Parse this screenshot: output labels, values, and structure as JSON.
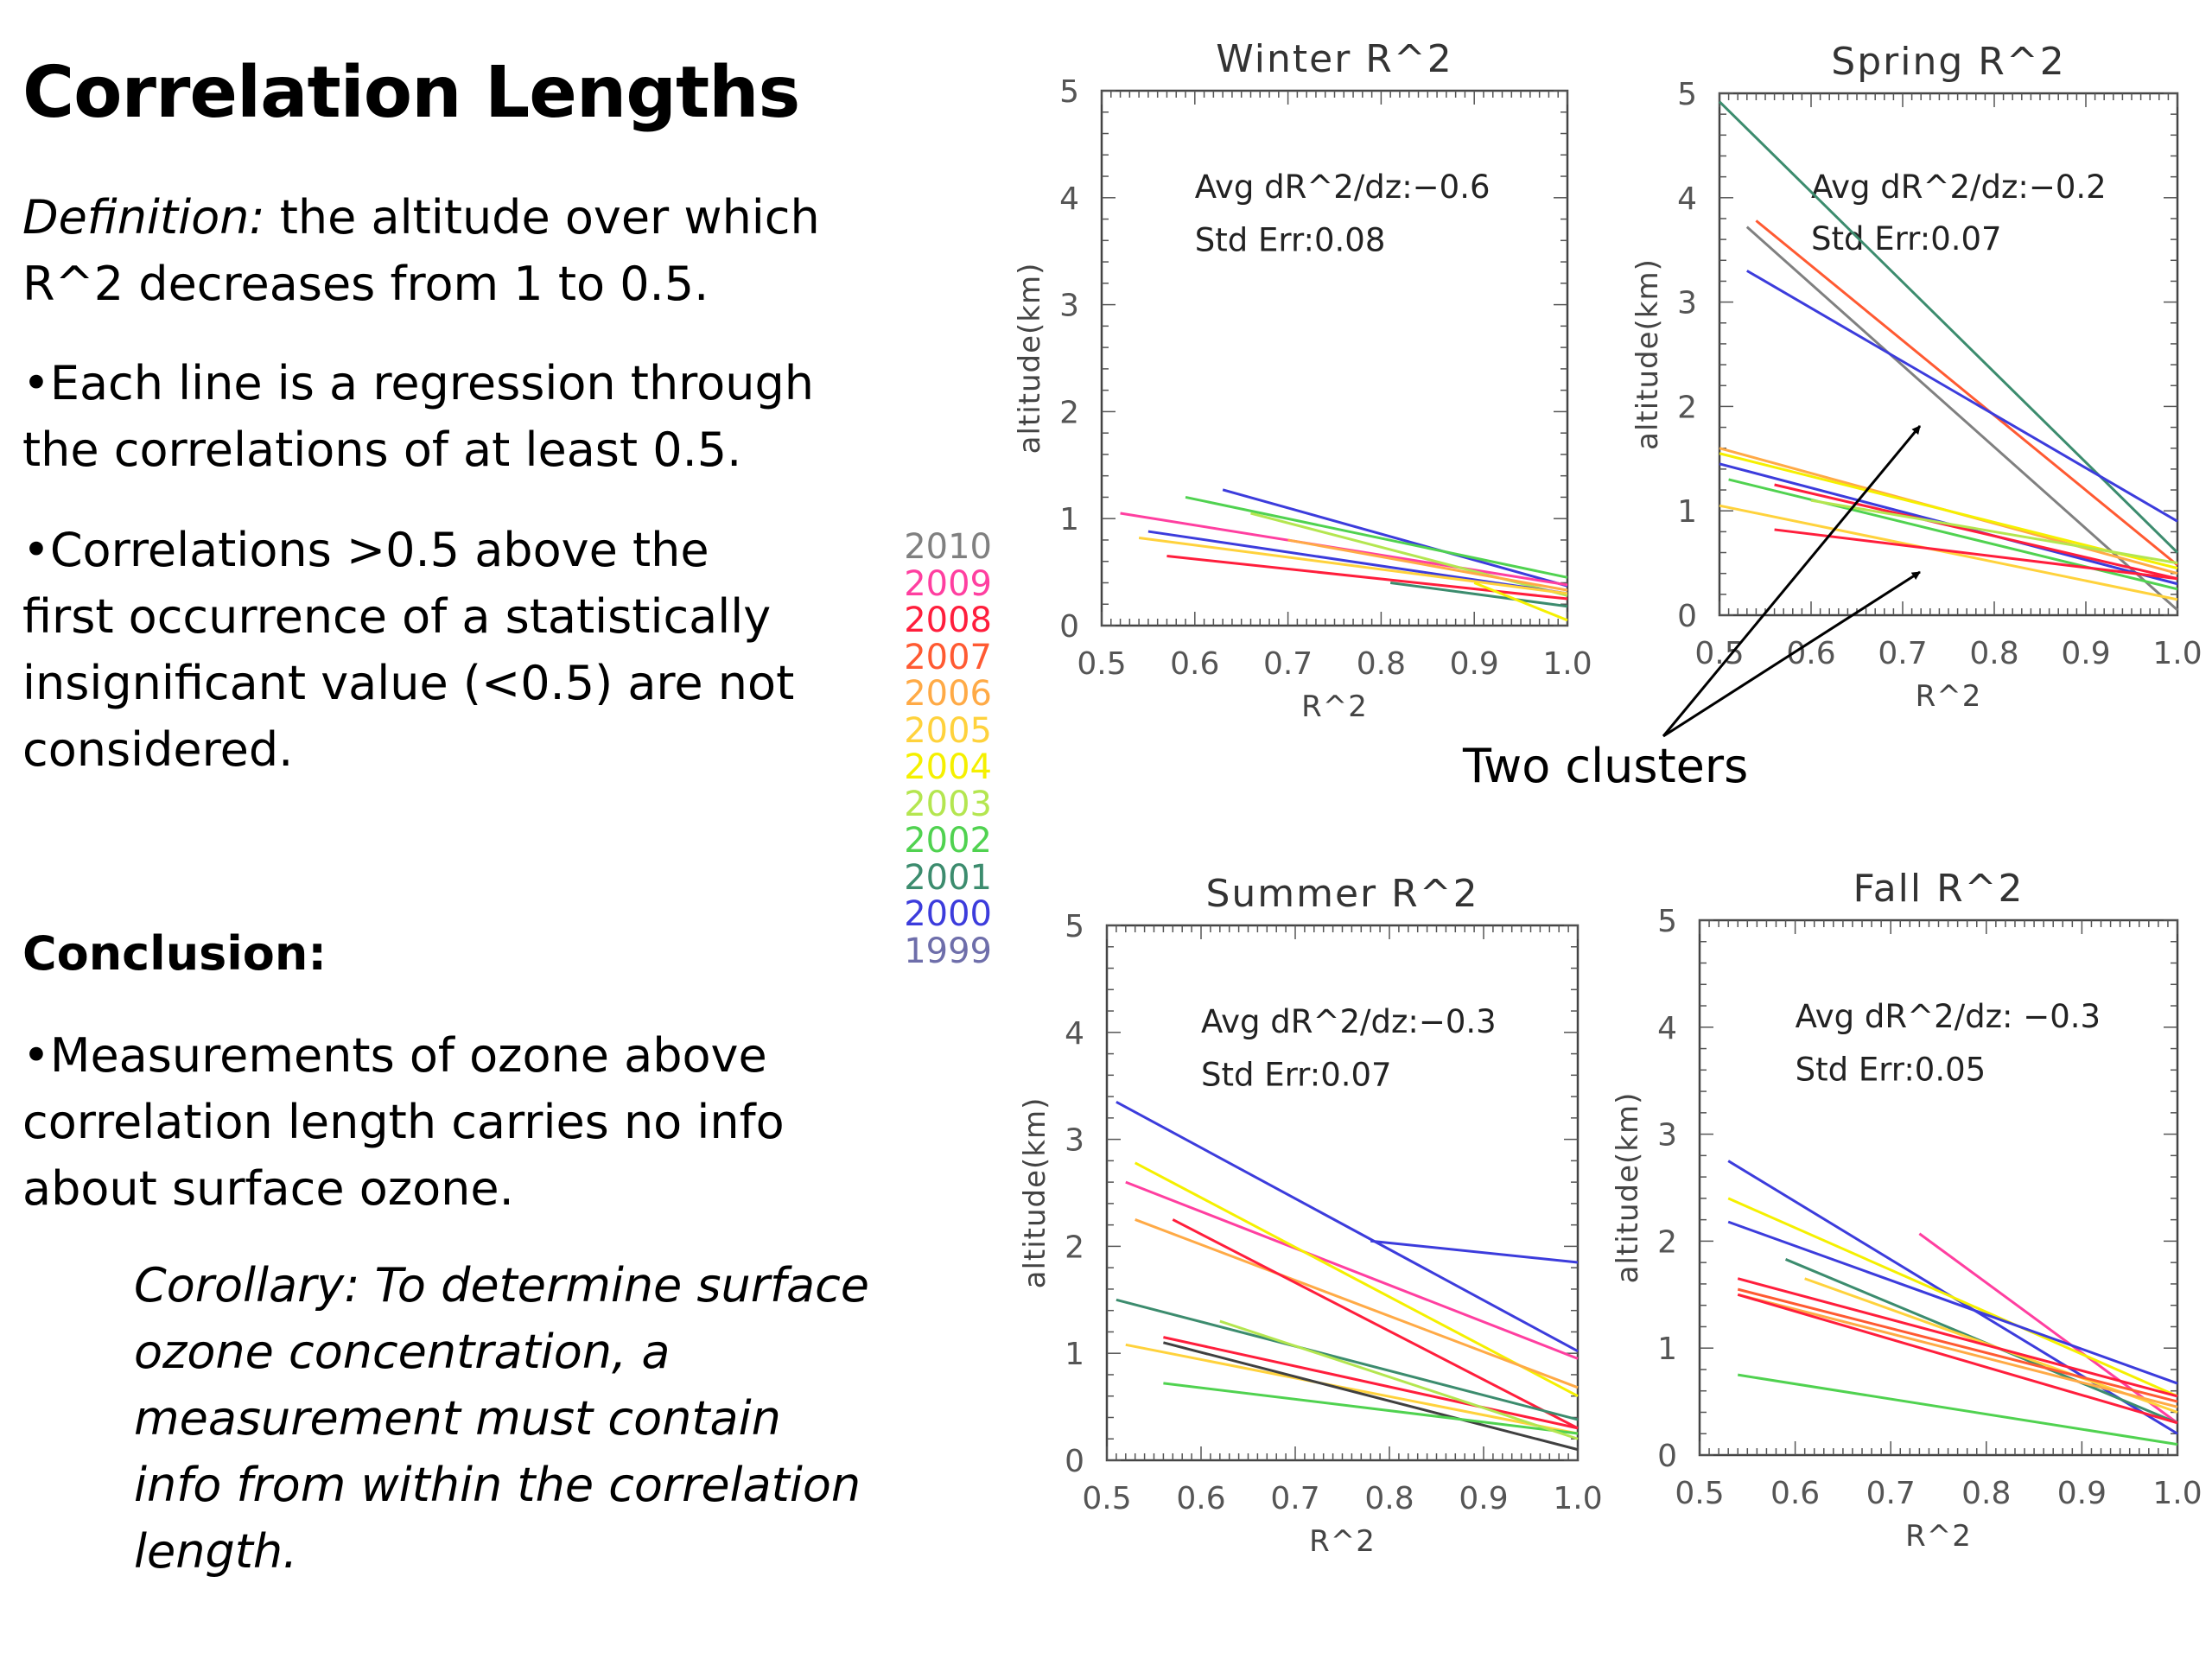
{
  "slide": {
    "title": "Correlation Lengths",
    "definition_label": "Definition:",
    "definition_text": " the altitude over which R^2 decreases from 1 to 0.5.",
    "bullet1": "•Each line is a regression through the correlations of at least 0.5.",
    "bullet2": "•Correlations >0.5 above the first occurrence of a statistically insignificant value (<0.5) are not considered.",
    "conclusion_heading": "Conclusion:",
    "bullet3": "•Measurements of ozone above correlation length carries no info about surface ozone.",
    "corollary": "Corollary:  To determine surface ozone concentration, a measurement must contain info from within the correlation length.",
    "annotation": "Two clusters"
  },
  "legend": [
    {
      "year": "2010",
      "color": "#808080"
    },
    {
      "year": "2009",
      "color": "#ff3fa0"
    },
    {
      "year": "2008",
      "color": "#ff1e3c"
    },
    {
      "year": "2007",
      "color": "#ff5a32"
    },
    {
      "year": "2006",
      "color": "#ffaa46"
    },
    {
      "year": "2005",
      "color": "#ffd23c"
    },
    {
      "year": "2004",
      "color": "#f5f000"
    },
    {
      "year": "2003",
      "color": "#b4e650"
    },
    {
      "year": "2002",
      "color": "#50d250"
    },
    {
      "year": "2001",
      "color": "#3c8c6e"
    },
    {
      "year": "2000",
      "color": "#3c3cdc"
    },
    {
      "year": "1999",
      "color": "#6e6eaa"
    }
  ],
  "chart_data": [
    {
      "type": "line",
      "title": "Winter R^2",
      "xlabel": "R^2",
      "ylabel": "altitude(km)",
      "xlim": [
        0.5,
        1.0
      ],
      "ylim": [
        0,
        5
      ],
      "x_ticks": [
        "0.5",
        "0.6",
        "0.7",
        "0.8",
        "0.9",
        "1.0"
      ],
      "y_ticks": [
        "0",
        "1",
        "2",
        "3",
        "4",
        "5"
      ],
      "stat_avg": "Avg dR^2/dz:−0.6",
      "stat_err": "Std Err:0.08",
      "series": [
        {
          "color": "#3c3cdc",
          "x": [
            0.63,
            1.0
          ],
          "y": [
            1.27,
            0.37
          ]
        },
        {
          "color": "#50d250",
          "x": [
            0.59,
            1.0
          ],
          "y": [
            1.2,
            0.45
          ]
        },
        {
          "color": "#ff3fa0",
          "x": [
            0.52,
            1.0
          ],
          "y": [
            1.05,
            0.38
          ]
        },
        {
          "color": "#b4e650",
          "x": [
            0.66,
            1.0
          ],
          "y": [
            1.05,
            0.28
          ]
        },
        {
          "color": "#3c3cdc",
          "x": [
            0.55,
            1.0
          ],
          "y": [
            0.88,
            0.3
          ]
        },
        {
          "color": "#ffd23c",
          "x": [
            0.54,
            1.0
          ],
          "y": [
            0.82,
            0.3
          ]
        },
        {
          "color": "#ff1e3c",
          "x": [
            0.57,
            1.0
          ],
          "y": [
            0.65,
            0.25
          ]
        },
        {
          "color": "#ffaa46",
          "x": [
            0.7,
            1.0
          ],
          "y": [
            0.8,
            0.33
          ]
        },
        {
          "color": "#3c8c6e",
          "x": [
            0.81,
            1.0
          ],
          "y": [
            0.4,
            0.18
          ]
        },
        {
          "color": "#f5f000",
          "x": [
            0.9,
            1.0
          ],
          "y": [
            0.4,
            0.05
          ]
        }
      ]
    },
    {
      "type": "line",
      "title": "Spring R^2",
      "xlabel": "R^2",
      "ylabel": "altitude(km)",
      "xlim": [
        0.5,
        1.0
      ],
      "ylim": [
        0,
        5
      ],
      "x_ticks": [
        "0.5",
        "0.6",
        "0.7",
        "0.8",
        "0.9",
        "1.0"
      ],
      "y_ticks": [
        "0",
        "1",
        "2",
        "3",
        "4",
        "5"
      ],
      "stat_avg": "Avg dR^2/dz:−0.2",
      "stat_err": "Std Err:0.07",
      "series": [
        {
          "color": "#3c8c6e",
          "x": [
            0.5,
            1.0
          ],
          "y": [
            4.92,
            0.6
          ]
        },
        {
          "color": "#ff5a32",
          "x": [
            0.54,
            1.0
          ],
          "y": [
            3.78,
            0.48
          ]
        },
        {
          "color": "#808080",
          "x": [
            0.53,
            1.0
          ],
          "y": [
            3.72,
            0.05
          ]
        },
        {
          "color": "#3c3cdc",
          "x": [
            0.53,
            1.0
          ],
          "y": [
            3.3,
            0.9
          ]
        },
        {
          "color": "#ffaa46",
          "x": [
            0.5,
            1.0
          ],
          "y": [
            1.6,
            0.4
          ]
        },
        {
          "color": "#f5f000",
          "x": [
            0.5,
            1.0
          ],
          "y": [
            1.55,
            0.45
          ]
        },
        {
          "color": "#3c3cdc",
          "x": [
            0.5,
            1.0
          ],
          "y": [
            1.45,
            0.3
          ]
        },
        {
          "color": "#50d250",
          "x": [
            0.51,
            1.0
          ],
          "y": [
            1.3,
            0.25
          ]
        },
        {
          "color": "#ff1e3c",
          "x": [
            0.56,
            1.0
          ],
          "y": [
            1.25,
            0.35
          ]
        },
        {
          "color": "#ffd23c",
          "x": [
            0.5,
            1.0
          ],
          "y": [
            1.05,
            0.15
          ]
        },
        {
          "color": "#ff1e3c",
          "x": [
            0.56,
            1.0
          ],
          "y": [
            0.82,
            0.35
          ]
        },
        {
          "color": "#b4e650",
          "x": [
            0.6,
            1.0
          ],
          "y": [
            1.1,
            0.5
          ]
        }
      ]
    },
    {
      "type": "line",
      "title": "Summer R^2",
      "xlabel": "R^2",
      "ylabel": "altitude(km)",
      "xlim": [
        0.5,
        1.0
      ],
      "ylim": [
        0,
        5
      ],
      "x_ticks": [
        "0.5",
        "0.6",
        "0.7",
        "0.8",
        "0.9",
        "1.0"
      ],
      "y_ticks": [
        "0",
        "1",
        "2",
        "3",
        "4",
        "5"
      ],
      "stat_avg": "Avg dR^2/dz:−0.3",
      "stat_err": "Std Err:0.07",
      "series": [
        {
          "color": "#3c3cdc",
          "x": [
            0.51,
            1.0
          ],
          "y": [
            3.35,
            1.02
          ]
        },
        {
          "color": "#3c3cdc",
          "x": [
            0.78,
            1.0
          ],
          "y": [
            2.05,
            1.85
          ]
        },
        {
          "color": "#ff3fa0",
          "x": [
            0.52,
            1.0
          ],
          "y": [
            2.6,
            0.95
          ]
        },
        {
          "color": "#f5f000",
          "x": [
            0.53,
            1.0
          ],
          "y": [
            2.78,
            0.6
          ]
        },
        {
          "color": "#ffaa46",
          "x": [
            0.53,
            1.0
          ],
          "y": [
            2.25,
            0.68
          ]
        },
        {
          "color": "#ff1e3c",
          "x": [
            0.57,
            1.0
          ],
          "y": [
            2.25,
            0.3
          ]
        },
        {
          "color": "#3c8c6e",
          "x": [
            0.51,
            1.0
          ],
          "y": [
            1.5,
            0.38
          ]
        },
        {
          "color": "#ff1e3c",
          "x": [
            0.56,
            1.0
          ],
          "y": [
            1.15,
            0.3
          ]
        },
        {
          "color": "#ffd23c",
          "x": [
            0.52,
            1.0
          ],
          "y": [
            1.08,
            0.25
          ]
        },
        {
          "color": "#404040",
          "x": [
            0.56,
            1.0
          ],
          "y": [
            1.1,
            0.1
          ]
        },
        {
          "color": "#50d250",
          "x": [
            0.56,
            1.0
          ],
          "y": [
            0.72,
            0.25
          ]
        },
        {
          "color": "#b4e650",
          "x": [
            0.62,
            1.0
          ],
          "y": [
            1.3,
            0.2
          ]
        }
      ]
    },
    {
      "type": "line",
      "title": "Fall R^2",
      "xlabel": "R^2",
      "ylabel": "altitude(km)",
      "xlim": [
        0.5,
        1.0
      ],
      "ylim": [
        0,
        5
      ],
      "x_ticks": [
        "0.5",
        "0.6",
        "0.7",
        "0.8",
        "0.9",
        "1.0"
      ],
      "y_ticks": [
        "0",
        "1",
        "2",
        "3",
        "4",
        "5"
      ],
      "stat_avg": "Avg dR^2/dz: −0.3",
      "stat_err": "Std Err:0.05",
      "series": [
        {
          "color": "#3c3cdc",
          "x": [
            0.53,
            1.0
          ],
          "y": [
            2.75,
            0.2
          ]
        },
        {
          "color": "#ff3fa0",
          "x": [
            0.73,
            1.0
          ],
          "y": [
            2.07,
            0.3
          ]
        },
        {
          "color": "#f5f000",
          "x": [
            0.53,
            1.0
          ],
          "y": [
            2.4,
            0.55
          ]
        },
        {
          "color": "#3c3cdc",
          "x": [
            0.53,
            1.0
          ],
          "y": [
            2.18,
            0.67
          ]
        },
        {
          "color": "#3c8c6e",
          "x": [
            0.59,
            1.0
          ],
          "y": [
            1.83,
            0.3
          ]
        },
        {
          "color": "#ffd23c",
          "x": [
            0.61,
            1.0
          ],
          "y": [
            1.65,
            0.4
          ]
        },
        {
          "color": "#ff1e3c",
          "x": [
            0.54,
            1.0
          ],
          "y": [
            1.65,
            0.55
          ]
        },
        {
          "color": "#ff5a32",
          "x": [
            0.54,
            1.0
          ],
          "y": [
            1.55,
            0.5
          ]
        },
        {
          "color": "#ffaa46",
          "x": [
            0.54,
            1.0
          ],
          "y": [
            1.5,
            0.45
          ]
        },
        {
          "color": "#ff1e3c",
          "x": [
            0.54,
            1.0
          ],
          "y": [
            1.5,
            0.3
          ]
        },
        {
          "color": "#50d250",
          "x": [
            0.54,
            1.0
          ],
          "y": [
            0.75,
            0.1
          ]
        }
      ]
    }
  ]
}
